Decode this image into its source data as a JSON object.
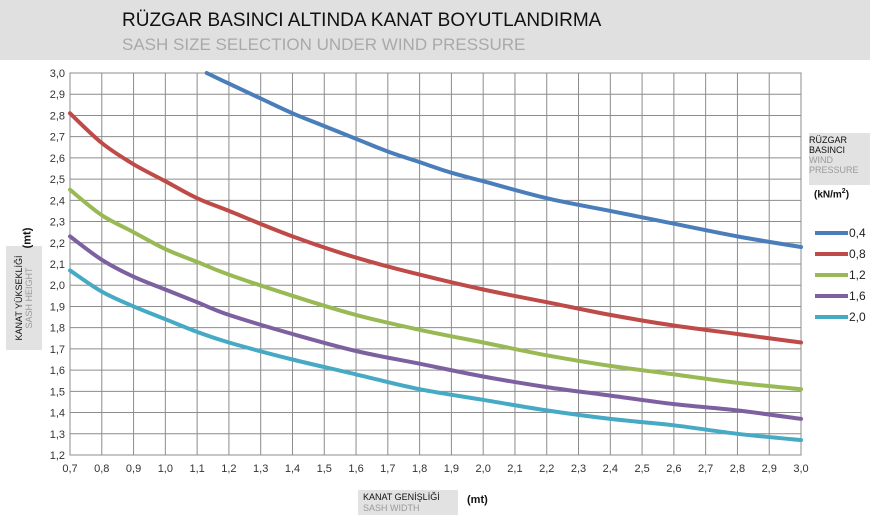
{
  "title": "RÜZGAR BASINCI ALTINDA KANAT BOYUTLANDIRMA",
  "subtitle": "SASH SIZE SELECTION UNDER WIND PRESSURE",
  "y_axis": {
    "title_tr": "KANAT YÜKSEKLİĞİ",
    "title_en": "SASH HEIGHT",
    "unit": "(mt)"
  },
  "x_axis": {
    "title_tr": "KANAT GENİŞLİĞİ",
    "title_en": "SASH WIDTH",
    "unit": "(mt)"
  },
  "legend": {
    "title_tr_1": "RÜZGAR",
    "title_tr_2": "BASINCI",
    "title_en_1": "WIND",
    "title_en_2": "PRESSURE",
    "unit": "(kN/m",
    "unit_sup": "2",
    "unit_close": ")"
  },
  "chart_data": {
    "type": "line",
    "xlim": [
      0.7,
      3.0
    ],
    "ylim": [
      1.2,
      3.0
    ],
    "x_ticks": [
      "0,7",
      "0,8",
      "0,9",
      "1,0",
      "1,1",
      "1,2",
      "1,3",
      "1,4",
      "1,5",
      "1,6",
      "1,7",
      "1,8",
      "1,9",
      "2,0",
      "2,1",
      "2,2",
      "2,3",
      "2,4",
      "2,5",
      "2,6",
      "2,7",
      "2,8",
      "2,9",
      "3,0"
    ],
    "y_ticks": [
      "1,2",
      "1,3",
      "1,4",
      "1,5",
      "1,6",
      "1,7",
      "1,8",
      "1,9",
      "2,0",
      "2,1",
      "2,2",
      "2,3",
      "2,4",
      "2,5",
      "2,6",
      "2,7",
      "2,8",
      "2,9",
      "3,0"
    ],
    "grid": true,
    "legend_position": "right",
    "series": [
      {
        "name": "0,4",
        "color": "#4a7ebb",
        "x": [
          1.13,
          1.2,
          1.3,
          1.4,
          1.5,
          1.6,
          1.7,
          1.8,
          1.9,
          2.0,
          2.2,
          2.4,
          2.6,
          2.8,
          3.0
        ],
        "y": [
          3.0,
          2.95,
          2.88,
          2.81,
          2.75,
          2.69,
          2.63,
          2.58,
          2.53,
          2.49,
          2.41,
          2.35,
          2.29,
          2.23,
          2.18
        ]
      },
      {
        "name": "0,8",
        "color": "#be4b48",
        "x": [
          0.7,
          0.8,
          0.9,
          1.0,
          1.1,
          1.2,
          1.4,
          1.6,
          1.8,
          2.0,
          2.2,
          2.4,
          2.6,
          2.8,
          3.0
        ],
        "y": [
          2.81,
          2.67,
          2.57,
          2.49,
          2.41,
          2.35,
          2.23,
          2.13,
          2.05,
          1.98,
          1.92,
          1.86,
          1.81,
          1.77,
          1.73
        ]
      },
      {
        "name": "1,2",
        "color": "#98b954",
        "x": [
          0.7,
          0.8,
          0.9,
          1.0,
          1.1,
          1.2,
          1.4,
          1.6,
          1.8,
          2.0,
          2.2,
          2.4,
          2.6,
          2.8,
          3.0
        ],
        "y": [
          2.45,
          2.33,
          2.25,
          2.17,
          2.11,
          2.05,
          1.95,
          1.86,
          1.79,
          1.73,
          1.67,
          1.62,
          1.58,
          1.54,
          1.51
        ]
      },
      {
        "name": "1,6",
        "color": "#7d60a0",
        "x": [
          0.7,
          0.8,
          0.9,
          1.0,
          1.1,
          1.2,
          1.4,
          1.6,
          1.8,
          2.0,
          2.2,
          2.4,
          2.6,
          2.8,
          3.0
        ],
        "y": [
          2.23,
          2.12,
          2.04,
          1.98,
          1.92,
          1.86,
          1.77,
          1.69,
          1.63,
          1.57,
          1.52,
          1.48,
          1.44,
          1.41,
          1.37
        ]
      },
      {
        "name": "2,0",
        "color": "#46aac5",
        "x": [
          0.7,
          0.8,
          0.9,
          1.0,
          1.1,
          1.2,
          1.4,
          1.6,
          1.8,
          2.0,
          2.2,
          2.4,
          2.6,
          2.8,
          3.0
        ],
        "y": [
          2.07,
          1.97,
          1.9,
          1.84,
          1.78,
          1.73,
          1.65,
          1.58,
          1.51,
          1.46,
          1.41,
          1.37,
          1.34,
          1.3,
          1.27
        ]
      }
    ]
  }
}
